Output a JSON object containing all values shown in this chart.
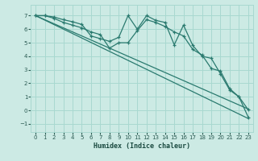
{
  "xlabel": "Humidex (Indice chaleur)",
  "bg_color": "#cceae4",
  "line_color": "#2a7a6f",
  "grid_color": "#a8d8d0",
  "xlim": [
    -0.5,
    23.5
  ],
  "ylim": [
    -1.6,
    7.8
  ],
  "xticks": [
    0,
    1,
    2,
    3,
    4,
    5,
    6,
    7,
    8,
    9,
    10,
    11,
    12,
    13,
    14,
    15,
    16,
    17,
    18,
    19,
    20,
    21,
    22,
    23
  ],
  "yticks": [
    -1,
    0,
    1,
    2,
    3,
    4,
    5,
    6,
    7
  ],
  "trend1_x": [
    0,
    23
  ],
  "trend1_y": [
    7.0,
    -0.6
  ],
  "trend2_x": [
    0,
    23
  ],
  "trend2_y": [
    7.0,
    0.1
  ],
  "series1_x": [
    0,
    1,
    2,
    3,
    4,
    5,
    6,
    7,
    8,
    9,
    10,
    11,
    12,
    13,
    14,
    15,
    16,
    17,
    18,
    19,
    20,
    21,
    22,
    23
  ],
  "series1_y": [
    7.0,
    7.0,
    6.9,
    6.7,
    6.55,
    6.35,
    5.5,
    5.3,
    5.1,
    5.4,
    7.0,
    6.0,
    7.0,
    6.65,
    6.5,
    4.85,
    6.3,
    4.8,
    4.0,
    3.85,
    2.7,
    1.5,
    1.0,
    0.05
  ],
  "series2_x": [
    0,
    1,
    2,
    3,
    4,
    5,
    6,
    7,
    8,
    9,
    10,
    11,
    12,
    13,
    14,
    15,
    16,
    17,
    18,
    19,
    20,
    21,
    22,
    23
  ],
  "series2_y": [
    7.0,
    7.0,
    6.8,
    6.5,
    6.3,
    6.1,
    5.8,
    5.6,
    4.6,
    5.0,
    5.0,
    5.9,
    6.7,
    6.5,
    6.2,
    5.8,
    5.5,
    4.5,
    4.1,
    3.1,
    2.9,
    1.6,
    1.0,
    -0.5
  ],
  "marker_size": 3.5,
  "linewidth": 0.9
}
